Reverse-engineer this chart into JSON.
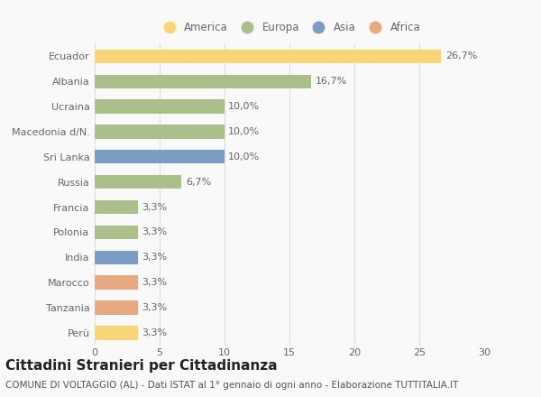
{
  "countries": [
    "Ecuador",
    "Albania",
    "Ucraina",
    "Macedonia d/N.",
    "Sri Lanka",
    "Russia",
    "Francia",
    "Polonia",
    "India",
    "Marocco",
    "Tanzania",
    "Perù"
  ],
  "values": [
    26.7,
    16.7,
    10.0,
    10.0,
    10.0,
    6.7,
    3.3,
    3.3,
    3.3,
    3.3,
    3.3,
    3.3
  ],
  "labels": [
    "26,7%",
    "16,7%",
    "10,0%",
    "10,0%",
    "10,0%",
    "6,7%",
    "3,3%",
    "3,3%",
    "3,3%",
    "3,3%",
    "3,3%",
    "3,3%"
  ],
  "continent": [
    "America",
    "Europa",
    "Europa",
    "Europa",
    "Asia",
    "Europa",
    "Europa",
    "Europa",
    "Asia",
    "Africa",
    "Africa",
    "America"
  ],
  "colors": {
    "America": "#F9D57A",
    "Europa": "#AABF8A",
    "Asia": "#7B9DC4",
    "Africa": "#E8A882"
  },
  "legend_order": [
    "America",
    "Europa",
    "Asia",
    "Africa"
  ],
  "xlim": [
    0,
    30
  ],
  "xticks": [
    0,
    5,
    10,
    15,
    20,
    25,
    30
  ],
  "title": "Cittadini Stranieri per Cittadinanza",
  "subtitle": "COMUNE DI VOLTAGGIO (AL) - Dati ISTAT al 1° gennaio di ogni anno - Elaborazione TUTTITALIA.IT",
  "background_color": "#f9f9f9",
  "bar_height": 0.55,
  "title_fontsize": 11,
  "subtitle_fontsize": 7.5,
  "label_fontsize": 8,
  "tick_fontsize": 8,
  "legend_fontsize": 8.5
}
